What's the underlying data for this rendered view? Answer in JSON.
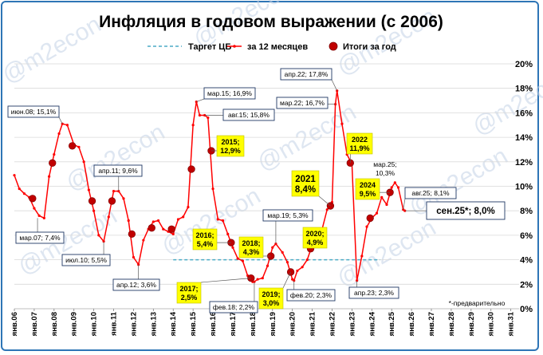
{
  "chart_data": {
    "type": "line",
    "title": "Инфляция в годовом выражении (с 2006)",
    "legend": [
      "Таргет ЦБ",
      "за 12 месяцев",
      "Итоги за год"
    ],
    "legend_position": "top",
    "watermark": "@m2econ",
    "note": "*-предварительно",
    "colors": {
      "target": "#4bacc6",
      "series": "#ff0000",
      "marker": "#c00000",
      "box_border": "#1f3864",
      "label_fill": "#ffff00",
      "frame": "#2e75b6"
    },
    "y_ticks": [
      "0%",
      "2%",
      "4%",
      "6%",
      "8%",
      "10%",
      "12%",
      "14%",
      "16%",
      "18%",
      "20%"
    ],
    "ylim": [
      0,
      20
    ],
    "x_ticks": [
      "янв.06",
      "янв.07",
      "янв.08",
      "янв.09",
      "янв.10",
      "янв.11",
      "янв.12",
      "янв.13",
      "янв.14",
      "янв.15",
      "янв.16",
      "янв.17",
      "янв.18",
      "янв.19",
      "янв.20",
      "янв.21",
      "янв.22",
      "янв.23",
      "янв.24",
      "янв.25",
      "янв.26",
      "янв.27",
      "янв.28",
      "янв.29",
      "янв.30",
      "янв.31"
    ],
    "xlim": [
      "2006-01",
      "2031-06"
    ],
    "grid": "horizontal",
    "target": {
      "value": 4,
      "from": "2014-01",
      "to": "2024-06"
    },
    "series": [
      {
        "name": "за 12 месяцев",
        "points": [
          [
            "2006-01",
            10.9
          ],
          [
            "2006-04",
            9.8
          ],
          [
            "2006-07",
            9.4
          ],
          [
            "2006-10",
            9.1
          ],
          [
            "2007-01",
            8.2
          ],
          [
            "2007-04",
            7.6
          ],
          [
            "2007-07",
            7.4
          ],
          [
            "2007-10",
            10.8
          ],
          [
            "2008-01",
            12.6
          ],
          [
            "2008-04",
            14.3
          ],
          [
            "2008-06",
            15.1
          ],
          [
            "2008-09",
            15.0
          ],
          [
            "2009-01",
            13.4
          ],
          [
            "2009-04",
            13.2
          ],
          [
            "2009-07",
            12.0
          ],
          [
            "2009-10",
            9.7
          ],
          [
            "2010-01",
            8.0
          ],
          [
            "2010-04",
            6.0
          ],
          [
            "2010-07",
            5.5
          ],
          [
            "2010-10",
            7.5
          ],
          [
            "2011-01",
            9.6
          ],
          [
            "2011-04",
            9.6
          ],
          [
            "2011-07",
            9.0
          ],
          [
            "2011-10",
            7.2
          ],
          [
            "2012-01",
            4.2
          ],
          [
            "2012-04",
            3.6
          ],
          [
            "2012-07",
            5.6
          ],
          [
            "2012-10",
            6.5
          ],
          [
            "2013-01",
            7.1
          ],
          [
            "2013-04",
            7.2
          ],
          [
            "2013-07",
            6.5
          ],
          [
            "2013-10",
            6.3
          ],
          [
            "2014-01",
            6.1
          ],
          [
            "2014-04",
            7.3
          ],
          [
            "2014-07",
            7.5
          ],
          [
            "2014-10",
            8.3
          ],
          [
            "2015-01",
            15.0
          ],
          [
            "2015-03",
            16.9
          ],
          [
            "2015-05",
            15.8
          ],
          [
            "2015-08",
            15.8
          ],
          [
            "2015-10",
            15.6
          ],
          [
            "2016-01",
            9.8
          ],
          [
            "2016-04",
            7.3
          ],
          [
            "2016-07",
            7.2
          ],
          [
            "2016-10",
            6.1
          ],
          [
            "2017-01",
            5.0
          ],
          [
            "2017-04",
            4.1
          ],
          [
            "2017-07",
            3.9
          ],
          [
            "2017-10",
            2.7
          ],
          [
            "2018-01",
            2.2
          ],
          [
            "2018-02",
            2.2
          ],
          [
            "2018-04",
            2.4
          ],
          [
            "2018-07",
            2.5
          ],
          [
            "2018-10",
            3.5
          ],
          [
            "2019-01",
            5.0
          ],
          [
            "2019-03",
            5.3
          ],
          [
            "2019-07",
            4.6
          ],
          [
            "2019-10",
            3.8
          ],
          [
            "2020-01",
            2.4
          ],
          [
            "2020-02",
            2.3
          ],
          [
            "2020-04",
            3.1
          ],
          [
            "2020-07",
            3.4
          ],
          [
            "2020-10",
            4.0
          ],
          [
            "2021-01",
            5.2
          ],
          [
            "2021-04",
            5.5
          ],
          [
            "2021-07",
            6.5
          ],
          [
            "2021-10",
            8.1
          ],
          [
            "2022-01",
            8.7
          ],
          [
            "2022-03",
            16.7
          ],
          [
            "2022-04",
            17.8
          ],
          [
            "2022-07",
            15.1
          ],
          [
            "2022-10",
            12.6
          ],
          [
            "2023-01",
            11.8
          ],
          [
            "2023-04",
            2.3
          ],
          [
            "2023-07",
            4.3
          ],
          [
            "2023-10",
            6.7
          ],
          [
            "2024-01",
            7.4
          ],
          [
            "2024-04",
            7.8
          ],
          [
            "2024-07",
            9.1
          ],
          [
            "2024-10",
            8.5
          ],
          [
            "2025-01",
            9.9
          ],
          [
            "2025-03",
            10.3
          ],
          [
            "2025-05",
            9.9
          ],
          [
            "2025-08",
            8.1
          ],
          [
            "2025-09",
            8.0
          ]
        ]
      }
    ],
    "annual": [
      [
        "2006-12",
        9.0
      ],
      [
        "2007-12",
        11.9
      ],
      [
        "2008-12",
        13.3
      ],
      [
        "2009-12",
        8.8
      ],
      [
        "2010-12",
        8.8
      ],
      [
        "2011-12",
        6.1
      ],
      [
        "2012-12",
        6.6
      ],
      [
        "2013-12",
        6.5
      ],
      [
        "2014-12",
        11.4
      ],
      [
        "2015-12",
        12.9
      ],
      [
        "2016-12",
        5.4
      ],
      [
        "2017-12",
        2.5
      ],
      [
        "2018-12",
        4.3
      ],
      [
        "2019-12",
        3.0
      ],
      [
        "2020-12",
        4.9
      ],
      [
        "2021-12",
        8.4
      ],
      [
        "2022-12",
        11.9
      ],
      [
        "2023-12",
        7.4
      ],
      [
        "2024-12",
        9.5
      ]
    ],
    "annotations": [
      {
        "id": "a1",
        "text": "июн.08; 15,1%",
        "style": "box"
      },
      {
        "id": "a2",
        "text": "мар.07; 7,4%",
        "style": "box"
      },
      {
        "id": "a3",
        "text": "июл.10; 5,5%",
        "style": "box"
      },
      {
        "id": "a4",
        "text": "апр.11; 9,6%",
        "style": "box"
      },
      {
        "id": "a5",
        "text": "апр.12; 3,6%",
        "style": "box"
      },
      {
        "id": "a6",
        "text": "мар.15; 16,9%",
        "style": "box"
      },
      {
        "id": "a7",
        "text": "авг.15; 15,8%",
        "style": "box"
      },
      {
        "id": "a8",
        "text": "фев.18; 2,2%",
        "style": "box"
      },
      {
        "id": "a9",
        "text": "мар.19; 5,3%",
        "style": "box"
      },
      {
        "id": "a10",
        "text": "фев.20; 2,3%",
        "style": "box"
      },
      {
        "id": "a11",
        "text": "апр.22; 17,8%",
        "style": "box"
      },
      {
        "id": "a12",
        "text": "мар.22; 16,7%",
        "style": "box"
      },
      {
        "id": "a13",
        "text": "апр.23; 2,3%",
        "style": "box"
      },
      {
        "id": "a14",
        "text": "мар.25;",
        "text2": "10,3%",
        "style": "plain"
      },
      {
        "id": "a15",
        "text": "авг.25; 8,1%",
        "style": "box"
      },
      {
        "id": "a16",
        "text": "сен.25*; 8,0%",
        "style": "big"
      },
      {
        "id": "y1",
        "text": "2015;",
        "text2": "12,9%",
        "style": "yellow"
      },
      {
        "id": "y2",
        "text": "2016;",
        "text2": "5,4%",
        "style": "yellow"
      },
      {
        "id": "y3",
        "text": "2017;",
        "text2": "2,5%",
        "style": "yellow"
      },
      {
        "id": "y4",
        "text": "2018;",
        "text2": "4,3%",
        "style": "yellow"
      },
      {
        "id": "y5",
        "text": "2019;",
        "text2": "3,0%",
        "style": "yellow"
      },
      {
        "id": "y6",
        "text": "2020;",
        "text2": "4,9%",
        "style": "yellow"
      },
      {
        "id": "y7",
        "text": "2021",
        "text2": "8,4%",
        "style": "yellow-big"
      },
      {
        "id": "y8",
        "text": "2022",
        "text2": "11,9%",
        "style": "yellow"
      },
      {
        "id": "y9",
        "text": "2024",
        "text2": "9,5%",
        "style": "yellow"
      }
    ]
  }
}
